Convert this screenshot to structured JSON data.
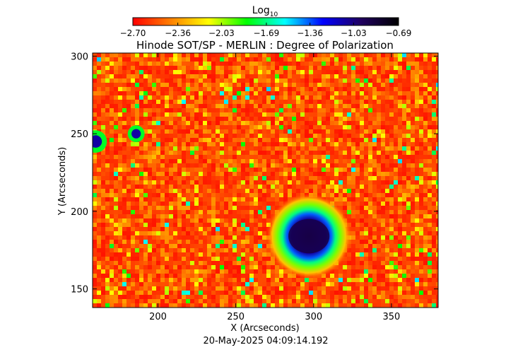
{
  "chart_data": {
    "type": "heatmap",
    "title": "Hinode SOT/SP - MERLIN : Degree of Polarization",
    "xlabel": "X (Arcseconds)",
    "ylabel": "Y (Arcseconds)",
    "timestamp": "20-May-2025 04:09:14.192",
    "xlim": [
      158,
      380
    ],
    "ylim": [
      138,
      302
    ],
    "x_ticks": [
      200,
      250,
      300,
      350
    ],
    "y_ticks": [
      150,
      200,
      250,
      300
    ],
    "colorbar": {
      "title_main": "Log",
      "title_sub": "10",
      "range": [
        -2.7,
        -0.69
      ],
      "tick_values": [
        -2.7,
        -2.36,
        -2.03,
        -1.69,
        -1.36,
        -1.03,
        -0.69
      ],
      "tick_labels": [
        "−2.70",
        "−2.36",
        "−2.03",
        "−1.69",
        "−1.36",
        "−1.03",
        "−0.69"
      ],
      "colormap": [
        "#ff0000",
        "#ff8000",
        "#ffff00",
        "#00ff00",
        "#00ffff",
        "#0000ff",
        "#200060",
        "#000000"
      ]
    },
    "features": [
      {
        "name": "sunspot",
        "center": [
          297,
          184
        ],
        "umbra_radius": 12,
        "penumbra_radius": 22,
        "level": -0.9
      },
      {
        "name": "pore",
        "center": [
          186,
          250
        ],
        "radius": 3,
        "level": -1.1
      },
      {
        "name": "pore",
        "center": [
          160,
          245
        ],
        "radius": 4,
        "level": -1.1
      }
    ]
  }
}
